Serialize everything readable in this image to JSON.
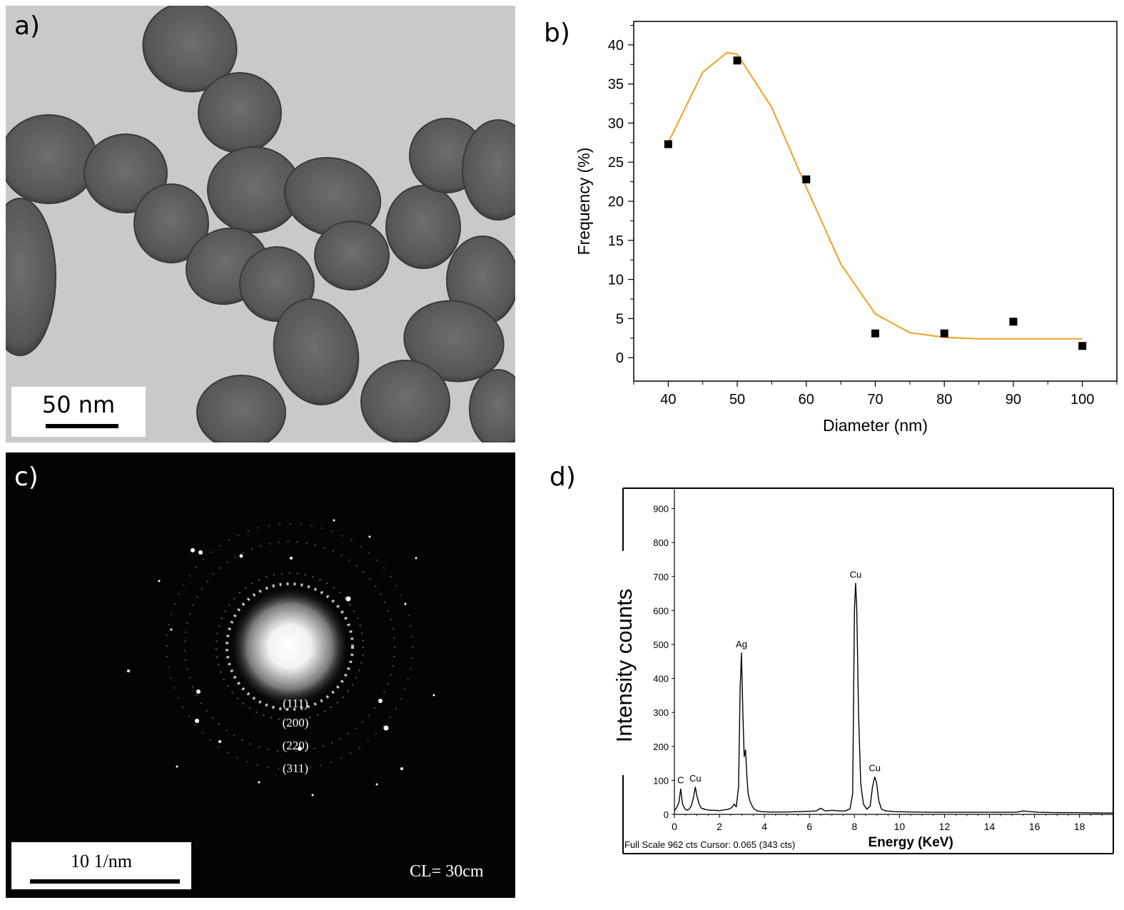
{
  "panels": {
    "a": {
      "label": "a)",
      "scale_bar": "50 nm"
    },
    "b": {
      "label": "b)"
    },
    "c": {
      "label": "c)",
      "scale_bar": "10 1/nm",
      "camera_length": "CL= 30cm",
      "ring_labels": [
        "(111)",
        "(200)",
        "(220)",
        "(311)"
      ]
    },
    "d": {
      "label": "d)"
    }
  },
  "chart_data": [
    {
      "panel": "b",
      "type": "scatter",
      "xlabel": "Diameter (nm)",
      "ylabel": "Frequency (%)",
      "xlim": [
        35,
        105
      ],
      "ylim": [
        -3,
        43
      ],
      "xticks": [
        40,
        50,
        60,
        70,
        80,
        90,
        100
      ],
      "yticks": [
        0,
        5,
        10,
        15,
        20,
        25,
        30,
        35,
        40
      ],
      "grid": false,
      "series": [
        {
          "kind": "points",
          "marker": "square",
          "color": "#000000",
          "x": [
            40,
            50,
            60,
            70,
            80,
            90,
            100
          ],
          "y": [
            27.3,
            38.0,
            22.8,
            3.1,
            3.1,
            4.6,
            1.5
          ]
        },
        {
          "kind": "fit",
          "color": "#f0a020",
          "x": [
            40,
            45,
            48.5,
            50,
            55,
            60,
            65,
            70,
            75,
            80,
            85,
            90,
            95,
            100
          ],
          "y": [
            27.5,
            36.5,
            39.0,
            38.8,
            32.0,
            21.8,
            12.0,
            5.6,
            3.2,
            2.6,
            2.4,
            2.4,
            2.4,
            2.4
          ]
        }
      ]
    },
    {
      "panel": "d",
      "type": "line",
      "xlabel": "Energy (KeV)",
      "ylabel": "Intensity counts",
      "xlim": [
        0,
        19.5
      ],
      "ylim": [
        0,
        960
      ],
      "xticks": [
        0,
        2,
        4,
        6,
        8,
        10,
        12,
        14,
        16,
        18
      ],
      "yticks": [
        0,
        100,
        200,
        300,
        400,
        500,
        600,
        700,
        800,
        900
      ],
      "footer": "Full Scale 962 cts Cursor: 0.065  (343 cts)",
      "peak_labels": [
        {
          "text": "C",
          "x": 0.28,
          "y": 75
        },
        {
          "text": "Cu",
          "x": 0.93,
          "y": 80
        },
        {
          "text": "Ag",
          "x": 2.98,
          "y": 475
        },
        {
          "text": "Cu",
          "x": 8.05,
          "y": 680
        },
        {
          "text": "Cu",
          "x": 8.9,
          "y": 110
        }
      ],
      "x": [
        0,
        0.1,
        0.2,
        0.28,
        0.36,
        0.45,
        0.55,
        0.65,
        0.75,
        0.85,
        0.93,
        1.0,
        1.1,
        1.2,
        1.4,
        1.6,
        1.8,
        2.0,
        2.2,
        2.4,
        2.55,
        2.65,
        2.75,
        2.85,
        2.92,
        2.98,
        3.04,
        3.1,
        3.16,
        3.22,
        3.28,
        3.35,
        3.45,
        3.55,
        3.7,
        3.9,
        4.2,
        4.6,
        5.0,
        5.5,
        6.0,
        6.3,
        6.5,
        6.7,
        7.0,
        7.3,
        7.6,
        7.8,
        7.92,
        8.0,
        8.05,
        8.1,
        8.18,
        8.28,
        8.4,
        8.55,
        8.7,
        8.8,
        8.9,
        8.98,
        9.08,
        9.2,
        9.4,
        9.8,
        10.5,
        11.5,
        12.5,
        13.5,
        14.5,
        15.2,
        15.5,
        15.8,
        16.2,
        17.0,
        18.0,
        19.0,
        19.5
      ],
      "y": [
        10,
        20,
        35,
        75,
        30,
        18,
        12,
        15,
        25,
        50,
        80,
        55,
        30,
        18,
        14,
        12,
        12,
        11,
        13,
        15,
        20,
        30,
        22,
        80,
        370,
        475,
        300,
        170,
        190,
        110,
        60,
        40,
        25,
        15,
        10,
        8,
        7,
        7,
        7,
        8,
        9,
        10,
        18,
        10,
        12,
        10,
        10,
        16,
        60,
        600,
        680,
        610,
        300,
        90,
        30,
        15,
        25,
        80,
        110,
        95,
        40,
        15,
        10,
        8,
        7,
        6,
        6,
        6,
        6,
        6,
        10,
        8,
        6,
        5,
        5,
        4,
        4
      ]
    }
  ]
}
